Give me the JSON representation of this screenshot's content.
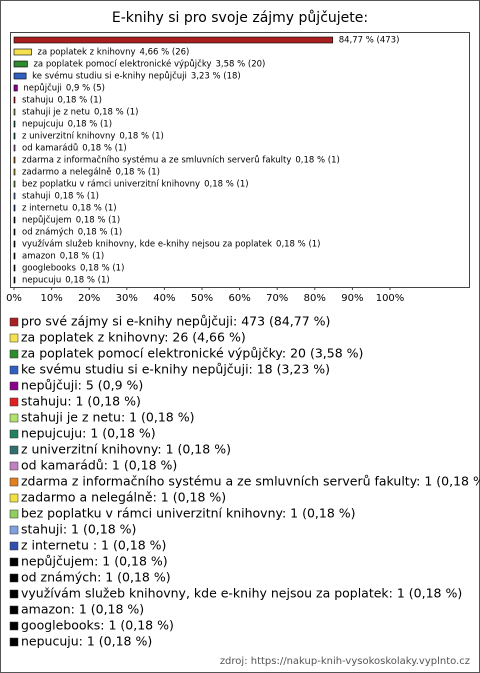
{
  "chart_data": {
    "type": "bar",
    "orientation": "horizontal",
    "title": "E-knihy si pro svoje zájmy půjčujete:",
    "categories": [
      "pro své zájmy si e-knihy nepůjčuji",
      "za poplatek z knihovny",
      "za poplatek pomocí elektronické výpůjčky",
      "ke svému studiu si e-knihy nepůjčuji",
      "nepůjčuji",
      "stahuju",
      "stahuji je z netu",
      "nepujcuju",
      " z univerzitní knihovny",
      "od kamarádů",
      "zdarma z informačního systému a ze smluvních serverů fakulty",
      "zadarmo a nelegálně",
      "bez poplatku v rámci univerzitní knihovny",
      "stahuji",
      "z internetu ",
      "nepůjčujem",
      "od známých",
      "využívám služeb knihovny, kde e-knihy nejsou za poplatek",
      "amazon",
      "googlebooks",
      "nepucuju"
    ],
    "values": [
      84.77,
      4.66,
      3.58,
      3.23,
      0.9,
      0.18,
      0.18,
      0.18,
      0.18,
      0.18,
      0.18,
      0.18,
      0.18,
      0.18,
      0.18,
      0.18,
      0.18,
      0.18,
      0.18,
      0.18,
      0.18
    ],
    "value_labels": [
      "84,77 % (473)",
      "4,66 % (26)",
      "3,58 % (20)",
      "3,23 % (18)",
      "0,9 % (5)",
      "0,18 % (1)",
      "0,18 % (1)",
      "0,18 % (1)",
      "0,18 % (1)",
      "0,18 % (1)",
      "0,18 % (1)",
      "0,18 % (1)",
      "0,18 % (1)",
      "0,18 % (1)",
      "0,18 % (1)",
      "0,18 % (1)",
      "0,18 % (1)",
      "0,18 % (1)",
      "0,18 % (1)",
      "0,18 % (1)",
      "0,18 % (1)"
    ],
    "legend": [
      "pro své zájmy si e-knihy nepůjčuji: 473 (84,77 %)",
      "za poplatek z knihovny: 26 (4,66 %)",
      "za poplatek pomocí elektronické výpůjčky: 20 (3,58 %)",
      "ke svému studiu si e-knihy nepůjčuji: 18 (3,23 %)",
      "nepůjčuji: 5 (0,9 %)",
      "stahuju: 1 (0,18 %)",
      "stahuji je z netu: 1 (0,18 %)",
      "nepujcuju: 1 (0,18 %)",
      " z univerzitní knihovny: 1 (0,18 %)",
      "od kamarádů: 1 (0,18 %)",
      "zdarma z informačního systému a ze smluvních serverů fakulty: 1 (0,18 %)",
      "zadarmo a nelegálně: 1 (0,18 %)",
      "bez poplatku v rámci univerzitní knihovny: 1 (0,18 %)",
      "stahuji: 1 (0,18 %)",
      "z internetu : 1 (0,18 %)",
      "nepůjčujem: 1 (0,18 %)",
      "od známých: 1 (0,18 %)",
      "využívám služeb knihovny, kde e-knihy nejsou za poplatek: 1 (0,18 %)",
      "amazon: 1 (0,18 %)",
      "googlebooks: 1 (0,18 %)",
      "nepucuju: 1 (0,18 %)"
    ],
    "colors": [
      "#a82020",
      "#f5e050",
      "#2e8b2e",
      "#3060c0",
      "#8b008b",
      "#e02020",
      "#b0e070",
      "#208060",
      "#2f6f6f",
      "#c080c0",
      "#e08020",
      "#f0e040",
      "#90d060",
      "#80a0e0",
      "#3050b0",
      "#000000",
      "#000000",
      "#000000",
      "#000000",
      "#000000",
      "#000000"
    ],
    "xlim": [
      0,
      100
    ],
    "xticks": [
      {
        "value": 0,
        "label": "0%"
      },
      {
        "value": 10,
        "label": "10%"
      },
      {
        "value": 20,
        "label": "20%"
      },
      {
        "value": 30,
        "label": "30%"
      },
      {
        "value": 40,
        "label": "40%"
      },
      {
        "value": 50,
        "label": "50%"
      },
      {
        "value": 60,
        "label": "60%"
      },
      {
        "value": 70,
        "label": "70%"
      },
      {
        "value": 80,
        "label": "80%"
      },
      {
        "value": 90,
        "label": "90%"
      },
      {
        "value": 100,
        "label": "100%"
      }
    ],
    "source": "zdroj: https://nakup-knih-vysokoskolaky.vyplnto.cz"
  }
}
